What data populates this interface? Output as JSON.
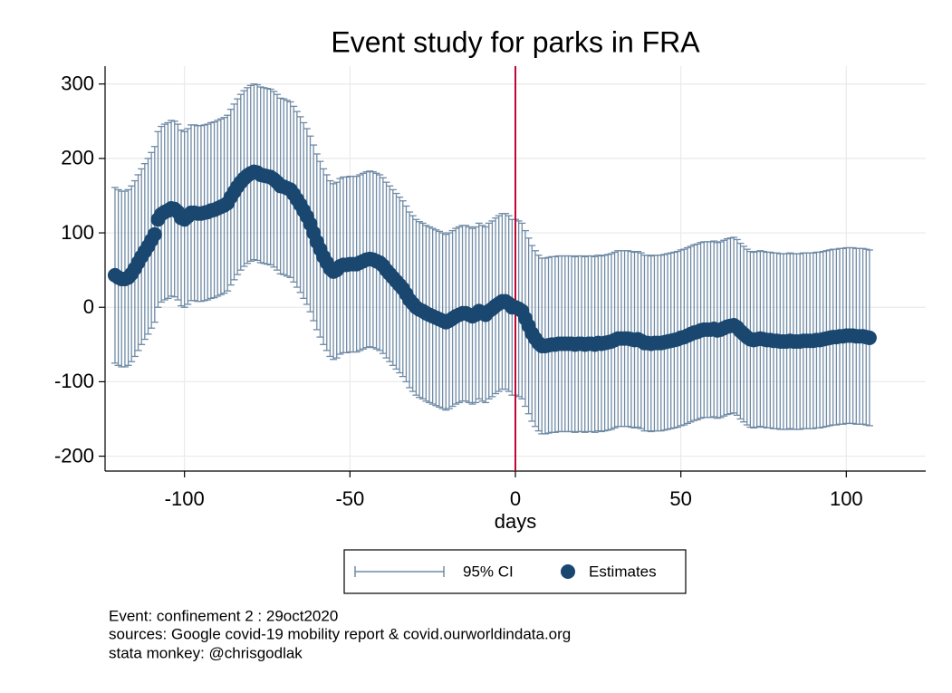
{
  "chart_data": {
    "type": "errorbar",
    "title": "Event study for parks in FRA",
    "xlabel": "days",
    "x": [
      -121,
      -120,
      -119,
      -118,
      -117,
      -116,
      -115,
      -114,
      -113,
      -112,
      -111,
      -110,
      -109,
      -108,
      -107,
      -106,
      -105,
      -104,
      -103,
      -102,
      -101,
      -100,
      -99,
      -98,
      -97,
      -96,
      -95,
      -94,
      -93,
      -92,
      -91,
      -90,
      -89,
      -88,
      -87,
      -86,
      -85,
      -84,
      -83,
      -82,
      -81,
      -80,
      -79,
      -78,
      -77,
      -76,
      -75,
      -74,
      -73,
      -72,
      -71,
      -70,
      -69,
      -68,
      -67,
      -66,
      -65,
      -64,
      -63,
      -62,
      -61,
      -60,
      -59,
      -58,
      -57,
      -56,
      -55,
      -54,
      -53,
      -52,
      -51,
      -50,
      -49,
      -48,
      -47,
      -46,
      -45,
      -44,
      -43,
      -42,
      -41,
      -40,
      -39,
      -38,
      -37,
      -36,
      -35,
      -34,
      -33,
      -32,
      -31,
      -30,
      -29,
      -28,
      -27,
      -26,
      -25,
      -24,
      -23,
      -22,
      -21,
      -20,
      -19,
      -18,
      -17,
      -16,
      -15,
      -14,
      -13,
      -12,
      -11,
      -10,
      -9,
      -8,
      -7,
      -6,
      -5,
      -4,
      -3,
      -2,
      -1,
      0,
      1,
      2,
      3,
      4,
      5,
      6,
      7,
      8,
      9,
      10,
      11,
      12,
      13,
      14,
      15,
      16,
      17,
      18,
      19,
      20,
      21,
      22,
      23,
      24,
      25,
      26,
      27,
      28,
      29,
      30,
      31,
      32,
      33,
      34,
      35,
      36,
      37,
      38,
      39,
      40,
      41,
      42,
      43,
      44,
      45,
      46,
      47,
      48,
      49,
      50,
      51,
      52,
      53,
      54,
      55,
      56,
      57,
      58,
      59,
      60,
      61,
      62,
      63,
      64,
      65,
      66,
      67,
      68,
      69,
      70,
      71,
      72,
      73,
      74,
      75,
      76,
      77,
      78,
      79,
      80,
      81,
      82,
      83,
      84,
      85,
      86,
      87,
      88,
      89,
      90,
      91,
      92,
      93,
      94,
      95,
      96,
      97,
      98,
      99,
      100,
      101,
      102,
      103,
      104,
      105,
      106,
      107
    ],
    "series": [
      {
        "name": "95% CI",
        "color": "#6f8aa5",
        "error": 118
      },
      {
        "name": "Estimates",
        "color": "#1a476f",
        "values": [
          43,
          40,
          38,
          38,
          40,
          45,
          52,
          60,
          68,
          75,
          82,
          90,
          98,
          118,
          125,
          128,
          130,
          133,
          132,
          128,
          120,
          118,
          122,
          127,
          127,
          126,
          126,
          127,
          128,
          130,
          131,
          133,
          135,
          137,
          140,
          148,
          155,
          162,
          168,
          173,
          177,
          180,
          182,
          181,
          178,
          177,
          176,
          175,
          172,
          168,
          163,
          162,
          160,
          158,
          152,
          145,
          138,
          130,
          122,
          112,
          100,
          88,
          78,
          68,
          60,
          52,
          48,
          50,
          55,
          57,
          57,
          58,
          58,
          58,
          60,
          62,
          64,
          65,
          64,
          62,
          60,
          56,
          50,
          45,
          40,
          35,
          30,
          25,
          18,
          10,
          5,
          0,
          -3,
          -5,
          -8,
          -10,
          -12,
          -14,
          -16,
          -18,
          -20,
          -18,
          -15,
          -12,
          -10,
          -8,
          -8,
          -10,
          -12,
          -10,
          -5,
          -8,
          -10,
          -5,
          -2,
          2,
          5,
          8,
          8,
          5,
          0,
          0,
          -2,
          -5,
          -15,
          -25,
          -35,
          -42,
          -48,
          -52,
          -52,
          -51,
          -50,
          -50,
          -49,
          -49,
          -49,
          -49,
          -49,
          -50,
          -49,
          -49,
          -50,
          -49,
          -49,
          -50,
          -48,
          -49,
          -48,
          -47,
          -46,
          -44,
          -42,
          -42,
          -42,
          -42,
          -43,
          -44,
          -43,
          -45,
          -48,
          -48,
          -49,
          -48,
          -48,
          -48,
          -47,
          -46,
          -45,
          -44,
          -43,
          -41,
          -40,
          -38,
          -36,
          -34,
          -33,
          -31,
          -30,
          -30,
          -30,
          -29,
          -31,
          -30,
          -28,
          -26,
          -25,
          -24,
          -27,
          -32,
          -36,
          -40,
          -43,
          -44,
          -43,
          -42,
          -43,
          -44,
          -44,
          -45,
          -45,
          -46,
          -46,
          -46,
          -45,
          -46,
          -46,
          -46,
          -45,
          -45,
          -45,
          -45,
          -44,
          -44,
          -43,
          -42,
          -41,
          -40,
          -40,
          -39,
          -39,
          -38,
          -38,
          -38,
          -39,
          -39,
          -39,
          -40,
          -41
        ]
      }
    ],
    "vline": 0,
    "vline_color": "#c10534",
    "xlim": [
      -124,
      124
    ],
    "ylim": [
      -220,
      324
    ],
    "xticks": [
      -100,
      -50,
      0,
      50,
      100
    ],
    "yticks": [
      -200,
      -100,
      0,
      100,
      200,
      300
    ],
    "grid": true,
    "notes": [
      "Event: confinement 2 : 29oct2020",
      "sources: Google covid-19 mobility report & covid.ourworldindata.org",
      "stata monkey: @chrisgodlak"
    ]
  }
}
